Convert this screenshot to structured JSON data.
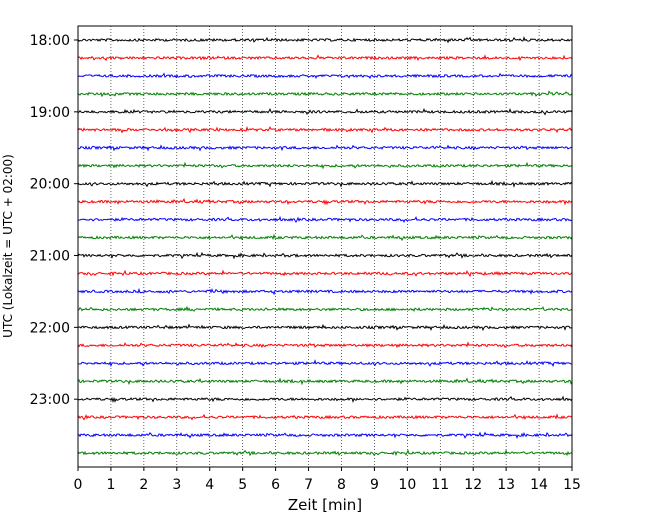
{
  "chart_data": {
    "type": "line",
    "subtype": "helicorder",
    "xlabel": "Zeit  [min]",
    "ylabel": "UTC (Lokalzeit = UTC + 02:00)",
    "xlim": [
      0,
      15
    ],
    "x_ticks": [
      0,
      1,
      2,
      3,
      4,
      5,
      6,
      7,
      8,
      9,
      10,
      11,
      12,
      13,
      14,
      15
    ],
    "y_tick_labels": [
      "18:00",
      "19:00",
      "20:00",
      "21:00",
      "22:00",
      "23:00"
    ],
    "grid": {
      "vertical": true,
      "style": "dotted"
    },
    "trace_interval_min": 15,
    "trace_colors": [
      "#000000",
      "#ff0000",
      "#0000ff",
      "#008000"
    ],
    "traces": [
      {
        "start": "18:00"
      },
      {
        "start": "18:15"
      },
      {
        "start": "18:30"
      },
      {
        "start": "18:45"
      },
      {
        "start": "19:00"
      },
      {
        "start": "19:15"
      },
      {
        "start": "19:30"
      },
      {
        "start": "19:45"
      },
      {
        "start": "20:00"
      },
      {
        "start": "20:15"
      },
      {
        "start": "20:30"
      },
      {
        "start": "20:45"
      },
      {
        "start": "21:00"
      },
      {
        "start": "21:15"
      },
      {
        "start": "21:30"
      },
      {
        "start": "21:45"
      },
      {
        "start": "22:00"
      },
      {
        "start": "22:15"
      },
      {
        "start": "22:30"
      },
      {
        "start": "22:45"
      },
      {
        "start": "23:00"
      },
      {
        "start": "23:15"
      },
      {
        "start": "23:30"
      },
      {
        "start": "23:45"
      }
    ]
  }
}
